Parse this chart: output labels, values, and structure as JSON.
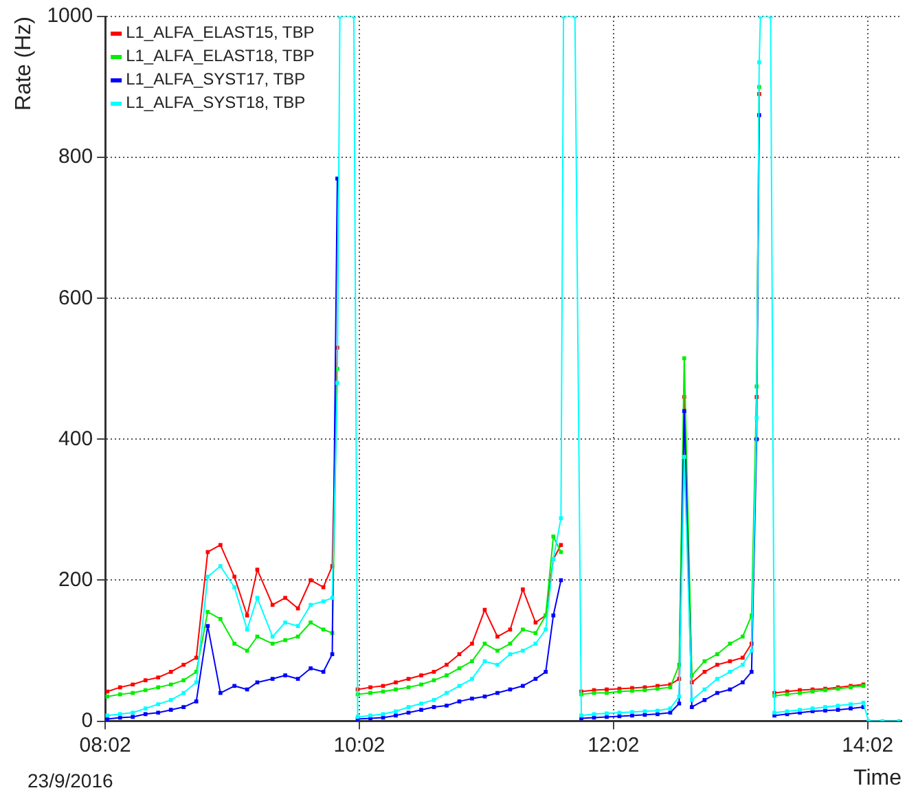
{
  "chart_data": {
    "type": "line",
    "xlabel": "Time",
    "ylabel": "Rate (Hz)",
    "annotations": [
      "23/9/2016"
    ],
    "x": [
      8.05,
      8.15,
      8.25,
      8.35,
      8.45,
      8.55,
      8.65,
      8.75,
      8.84,
      8.94,
      9.05,
      9.15,
      9.23,
      9.35,
      9.45,
      9.55,
      9.65,
      9.75,
      9.82,
      9.86,
      9.88,
      9.99,
      10.02,
      10.12,
      10.22,
      10.32,
      10.42,
      10.52,
      10.62,
      10.72,
      10.82,
      10.92,
      11.02,
      11.12,
      11.22,
      11.32,
      11.42,
      11.5,
      11.56,
      11.62,
      11.64,
      11.73,
      11.78,
      11.88,
      11.98,
      12.08,
      12.18,
      12.28,
      12.38,
      12.48,
      12.55,
      12.59,
      12.65,
      12.75,
      12.85,
      12.95,
      13.05,
      13.12,
      13.16,
      13.18,
      13.19,
      13.27,
      13.3,
      13.4,
      13.5,
      13.6,
      13.7,
      13.8,
      13.9,
      14.0,
      14.04,
      14.15,
      14.28
    ],
    "series": [
      {
        "name": "L1_ALFA_ELAST15, TBP",
        "color": "#ff0000",
        "values": [
          42,
          48,
          52,
          58,
          62,
          70,
          80,
          90,
          240,
          250,
          205,
          150,
          215,
          165,
          175,
          160,
          200,
          190,
          220,
          530,
          null,
          null,
          45,
          48,
          50,
          55,
          60,
          65,
          70,
          80,
          95,
          110,
          158,
          120,
          130,
          187,
          140,
          150,
          230,
          250,
          null,
          null,
          42,
          44,
          45,
          46,
          47,
          48,
          50,
          52,
          60,
          460,
          55,
          70,
          80,
          85,
          90,
          110,
          460,
          890,
          null,
          null,
          40,
          42,
          44,
          45,
          46,
          48,
          50,
          52,
          null,
          null,
          null
        ]
      },
      {
        "name": "L1_ALFA_ELAST18, TBP",
        "color": "#00ee00",
        "values": [
          35,
          38,
          40,
          44,
          48,
          52,
          58,
          70,
          155,
          145,
          110,
          100,
          120,
          110,
          115,
          120,
          140,
          130,
          125,
          500,
          null,
          null,
          38,
          40,
          42,
          45,
          48,
          52,
          58,
          65,
          75,
          85,
          110,
          100,
          110,
          130,
          125,
          150,
          262,
          240,
          null,
          null,
          38,
          40,
          40,
          42,
          43,
          44,
          46,
          48,
          80,
          515,
          65,
          85,
          95,
          110,
          120,
          150,
          475,
          900,
          null,
          null,
          36,
          38,
          40,
          42,
          44,
          46,
          48,
          50,
          null,
          null,
          null
        ]
      },
      {
        "name": "L1_ALFA_SYST17, TBP",
        "color": "#0000ff",
        "values": [
          3,
          5,
          6,
          10,
          12,
          16,
          20,
          28,
          135,
          40,
          50,
          45,
          55,
          60,
          65,
          60,
          75,
          70,
          95,
          770,
          null,
          null,
          3,
          4,
          5,
          8,
          12,
          16,
          20,
          22,
          28,
          32,
          35,
          40,
          45,
          50,
          60,
          70,
          150,
          200,
          null,
          null,
          4,
          5,
          6,
          7,
          8,
          9,
          10,
          12,
          25,
          440,
          20,
          30,
          40,
          45,
          55,
          70,
          400,
          860,
          null,
          null,
          8,
          10,
          12,
          14,
          15,
          16,
          18,
          20,
          null,
          null,
          null
        ]
      },
      {
        "name": "L1_ALFA_SYST18, TBP",
        "color": "#00ffff",
        "values": [
          8,
          10,
          12,
          18,
          24,
          30,
          40,
          55,
          205,
          220,
          190,
          130,
          175,
          120,
          140,
          135,
          165,
          170,
          175,
          480,
          1000,
          1000,
          6,
          8,
          10,
          14,
          20,
          25,
          30,
          40,
          50,
          60,
          85,
          80,
          95,
          100,
          110,
          130,
          230,
          288,
          1000,
          1000,
          8,
          10,
          11,
          12,
          13,
          14,
          15,
          18,
          35,
          375,
          30,
          45,
          60,
          70,
          80,
          100,
          430,
          935,
          1000,
          1000,
          12,
          14,
          16,
          18,
          20,
          22,
          24,
          26,
          0,
          0,
          0
        ]
      }
    ],
    "xlim": [
      8.0333,
      14.3
    ],
    "xticks": [
      {
        "value": 8.0333,
        "label": "08:02"
      },
      {
        "value": 10.0333,
        "label": "10:02"
      },
      {
        "value": 12.0333,
        "label": "12:02"
      },
      {
        "value": 14.0333,
        "label": "14:02"
      }
    ],
    "ylim": [
      0,
      1000
    ],
    "yticks": [
      0,
      200,
      400,
      600,
      800,
      1000
    ],
    "grid": true,
    "legend": "top left",
    "marker": "square",
    "line_style": "solid"
  }
}
